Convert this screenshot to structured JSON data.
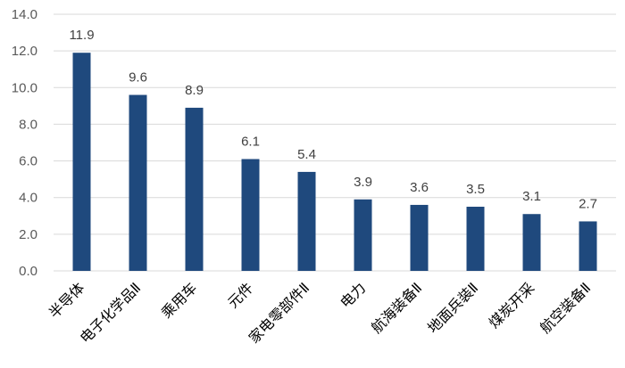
{
  "chart_data": {
    "type": "bar",
    "title": "",
    "xlabel": "",
    "ylabel": "",
    "ylim": [
      0,
      14
    ],
    "yticks": [
      "0.0",
      "2.0",
      "4.0",
      "6.0",
      "8.0",
      "10.0",
      "12.0",
      "14.0"
    ],
    "grid": true,
    "categories": [
      "半导体",
      "电子化学品Ⅱ",
      "乘用车",
      "元件",
      "家电零部件Ⅱ",
      "电力",
      "航海装备Ⅱ",
      "地面兵装Ⅱ",
      "煤炭开采",
      "航空装备Ⅱ"
    ],
    "values": [
      11.9,
      9.6,
      8.9,
      6.1,
      5.4,
      3.9,
      3.6,
      3.5,
      3.1,
      2.7
    ],
    "data_labels": [
      "11.9",
      "9.6",
      "8.9",
      "6.1",
      "5.4",
      "3.9",
      "3.6",
      "3.5",
      "3.1",
      "2.7"
    ],
    "bar_color": "#1f497d",
    "grid_color": "#d9d9d9"
  }
}
